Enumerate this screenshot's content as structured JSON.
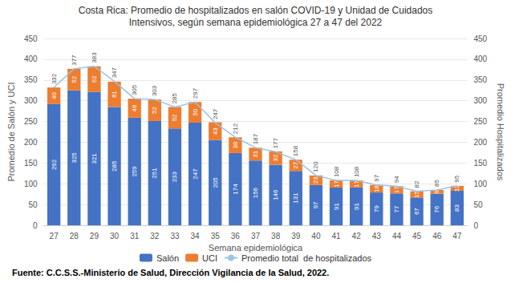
{
  "chart_data": {
    "type": "bar",
    "title": "Costa Rica: Promedio de hospitalizados en salón COVID-19 y Unidad de Cuidados",
    "subtitle": "Intensivos, según semana epidemiológica 27 a 47 del 2022",
    "xlabel": "Semana epidemiológica",
    "ylabel": "Promedio de Salón y UCI",
    "y2label": "Promedio Hospitalizados",
    "annotations": [
      "Fuente: C.C.S.S.-Ministerio de Salud, Dirección Vigilancia de la Salud, 2022."
    ],
    "categories": [
      "27",
      "28",
      "29",
      "30",
      "31",
      "32",
      "33",
      "34",
      "35",
      "36",
      "37",
      "38",
      "39",
      "40",
      "41",
      "42",
      "43",
      "44",
      "45",
      "46",
      "47"
    ],
    "series": [
      {
        "name": "Salón",
        "type": "bar",
        "color": "#4472c4",
        "values": [
          292,
          325,
          321,
          285,
          259,
          251,
          233,
          247,
          205,
          174,
          156,
          146,
          131,
          97,
          91,
          91,
          79,
          77,
          67,
          76,
          83
        ]
      },
      {
        "name": "UCI",
        "type": "bar",
        "color": "#ed7d31",
        "values": [
          40,
          52,
          62,
          61,
          46,
          52,
          52,
          50,
          43,
          38,
          31,
          32,
          27,
          23,
          17,
          17,
          18,
          17,
          15,
          9,
          12
        ]
      },
      {
        "name": "Promedio total  de hospitalizados",
        "type": "line",
        "color": "#9dc3e6",
        "values": [
          332,
          377,
          383,
          347,
          305,
          303,
          285,
          297,
          247,
          212,
          187,
          177,
          158,
          120,
          108,
          108,
          97,
          94,
          82,
          85,
          95
        ]
      }
    ],
    "stacked": true,
    "data_labels": true,
    "ylim": [
      0,
      450
    ],
    "yticks": [
      0,
      50,
      100,
      150,
      200,
      250,
      300,
      350,
      400,
      450
    ],
    "y2lim": [
      0,
      450
    ],
    "y2ticks": [
      0,
      50,
      100,
      150,
      200,
      250,
      300,
      350,
      400,
      450
    ],
    "grid": true,
    "legend": "bottom"
  }
}
